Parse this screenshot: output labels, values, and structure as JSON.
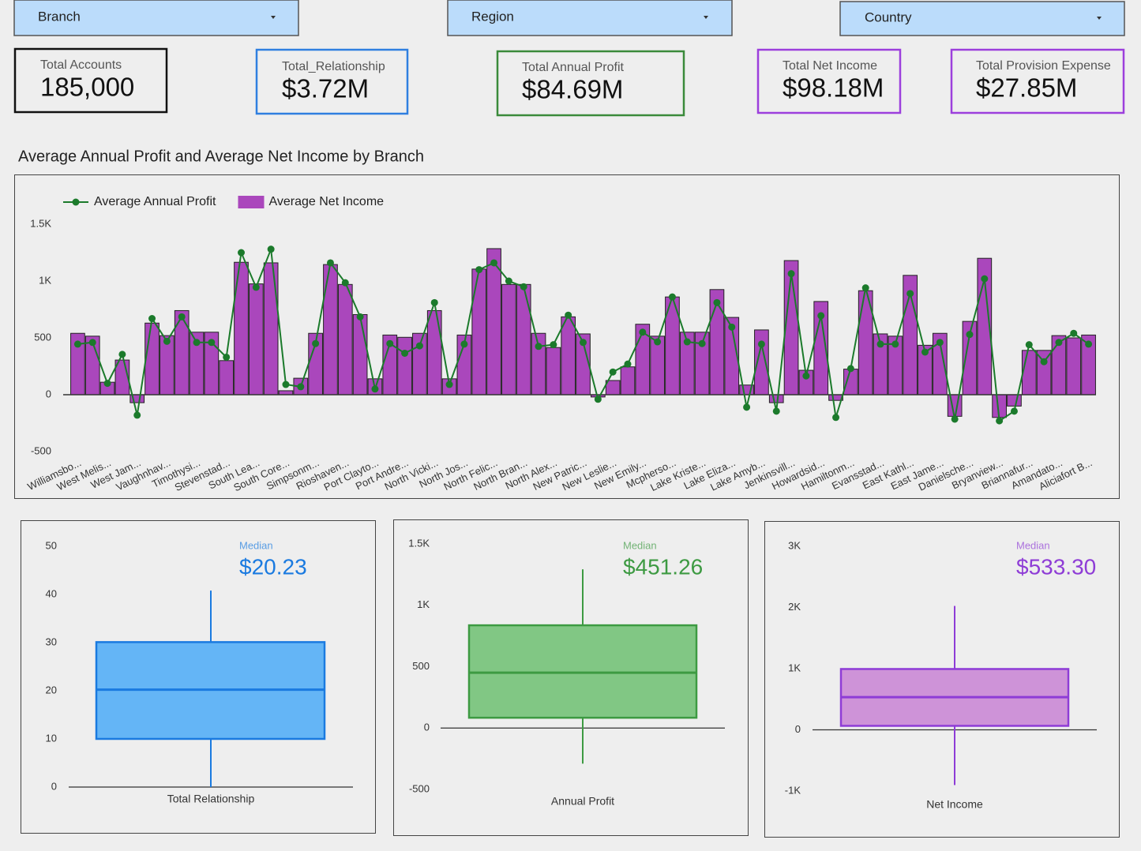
{
  "filters": [
    "Branch",
    "Region",
    "Country"
  ],
  "kpis": [
    {
      "label": "Total Accounts",
      "value": "185,000"
    },
    {
      "label": "Total_Relationship",
      "value": "$3.72M"
    },
    {
      "label": "Total Annual Profit",
      "value": "$84.69M"
    },
    {
      "label": "Total Net Income",
      "value": "$98.18M"
    },
    {
      "label": "Total Provision Expense",
      "value": "$27.85M"
    }
  ],
  "chart_data": [
    {
      "type": "combo",
      "title": "Average Annual Profit and Average Net Income by Branch",
      "categories": [
        "Williamsbo...",
        null,
        "West Melis...",
        null,
        "West Jam...",
        null,
        "Vaughnhav...",
        null,
        "Timothysi...",
        null,
        "Stevenstad...",
        null,
        "South Lea...",
        null,
        "South Core...",
        null,
        "Simpsonm...",
        null,
        "Rioshaven...",
        null,
        "Port Clayto...",
        null,
        "Port Andre...",
        null,
        "North Vicki...",
        null,
        "North Jos...",
        null,
        "North Felic...",
        null,
        "North Bran...",
        null,
        "North Alex...",
        null,
        "New Patric...",
        null,
        "New Leslie...",
        null,
        "New Emily...",
        null,
        "Mcpherso...",
        null,
        "Lake Kriste...",
        null,
        "Lake Eliza...",
        null,
        "Lake Amyb...",
        null,
        "Jenkinsvill...",
        null,
        "Howardsid...",
        null,
        "Hamiltonm...",
        null,
        "Evansstad...",
        null,
        "East Kathl...",
        null,
        "East Jame...",
        null,
        "Danielsche...",
        null,
        "Bryanview...",
        null,
        "Briannafur...",
        null,
        "Amandato...",
        null,
        "Aliciafort B..."
      ],
      "series": [
        {
          "name": "Average Annual Profit",
          "type": "line",
          "color": "#1b7a2b",
          "values": [
            445,
            460,
            100,
            355,
            -180,
            670,
            470,
            685,
            460,
            460,
            330,
            1250,
            945,
            1280,
            90,
            70,
            450,
            1160,
            985,
            685,
            50,
            450,
            365,
            430,
            810,
            90,
            445,
            1100,
            1160,
            1000,
            950,
            425,
            440,
            700,
            460,
            -40,
            200,
            270,
            550,
            465,
            860,
            465,
            450,
            810,
            595,
            -110,
            445,
            -145,
            1065,
            165,
            695,
            -200,
            230,
            940,
            445,
            445,
            890,
            375,
            460,
            -215,
            530,
            1020,
            -230,
            -145,
            440,
            290,
            460,
            540,
            445
          ]
        },
        {
          "name": "Average Net Income",
          "type": "bar",
          "color": "#aa47bc",
          "values": [
            540,
            515,
            110,
            305,
            -70,
            630,
            520,
            740,
            550,
            550,
            300,
            1165,
            975,
            1160,
            35,
            145,
            540,
            1145,
            970,
            705,
            140,
            525,
            505,
            540,
            740,
            140,
            525,
            1105,
            1285,
            970,
            970,
            540,
            415,
            685,
            535,
            -20,
            125,
            245,
            620,
            515,
            860,
            550,
            550,
            925,
            680,
            85,
            570,
            -70,
            1180,
            215,
            820,
            -50,
            225,
            915,
            535,
            515,
            1050,
            435,
            540,
            -190,
            645,
            1200,
            -200,
            -100,
            390,
            390,
            520,
            500,
            525
          ]
        }
      ],
      "ylim": [
        -500,
        1500
      ],
      "yticks": [
        -500,
        0,
        500,
        {
          "value": 1000,
          "label": "1K"
        },
        {
          "value": 1500,
          "label": "1.5K"
        }
      ],
      "grid": false,
      "legend": "top-left"
    },
    {
      "type": "box",
      "x_label": "Total Relationship",
      "color": "#64b5f6",
      "line_color": "#1a7ae0",
      "median_caption": "Median",
      "median_value_label": "$20.23",
      "stats": {
        "min": 0,
        "q1": 10,
        "median": 20.23,
        "q3": 30.1,
        "max": 40.8
      },
      "ylim": [
        0,
        50
      ],
      "yticks": [
        0,
        10,
        20,
        30,
        40,
        50
      ]
    },
    {
      "type": "box",
      "x_label": "Annual Profit",
      "color": "#81c784",
      "line_color": "#3d9a42",
      "median_caption": "Median",
      "median_value_label": "$451.26",
      "stats": {
        "min": -290,
        "q1": 84,
        "median": 451.26,
        "q3": 837,
        "max": 1293
      },
      "ylim": [
        -500,
        1500
      ],
      "yticks": [
        -500,
        0,
        500,
        {
          "value": 1000,
          "label": "1K"
        },
        {
          "value": 1500,
          "label": "1.5K"
        }
      ]
    },
    {
      "type": "box",
      "x_label": "Net Income",
      "color": "#ce93d8",
      "line_color": "#8e3cd6",
      "median_caption": "Median",
      "median_value_label": "$533.30",
      "stats": {
        "min": -903,
        "q1": 65,
        "median": 533.3,
        "q3": 994,
        "max": 2025
      },
      "ylim": [
        -1000,
        3000
      ],
      "yticks": [
        {
          "value": -1000,
          "label": "-1K"
        },
        0,
        {
          "value": 1000,
          "label": "1K"
        },
        {
          "value": 2000,
          "label": "2K"
        },
        {
          "value": 3000,
          "label": "3K"
        }
      ]
    }
  ]
}
